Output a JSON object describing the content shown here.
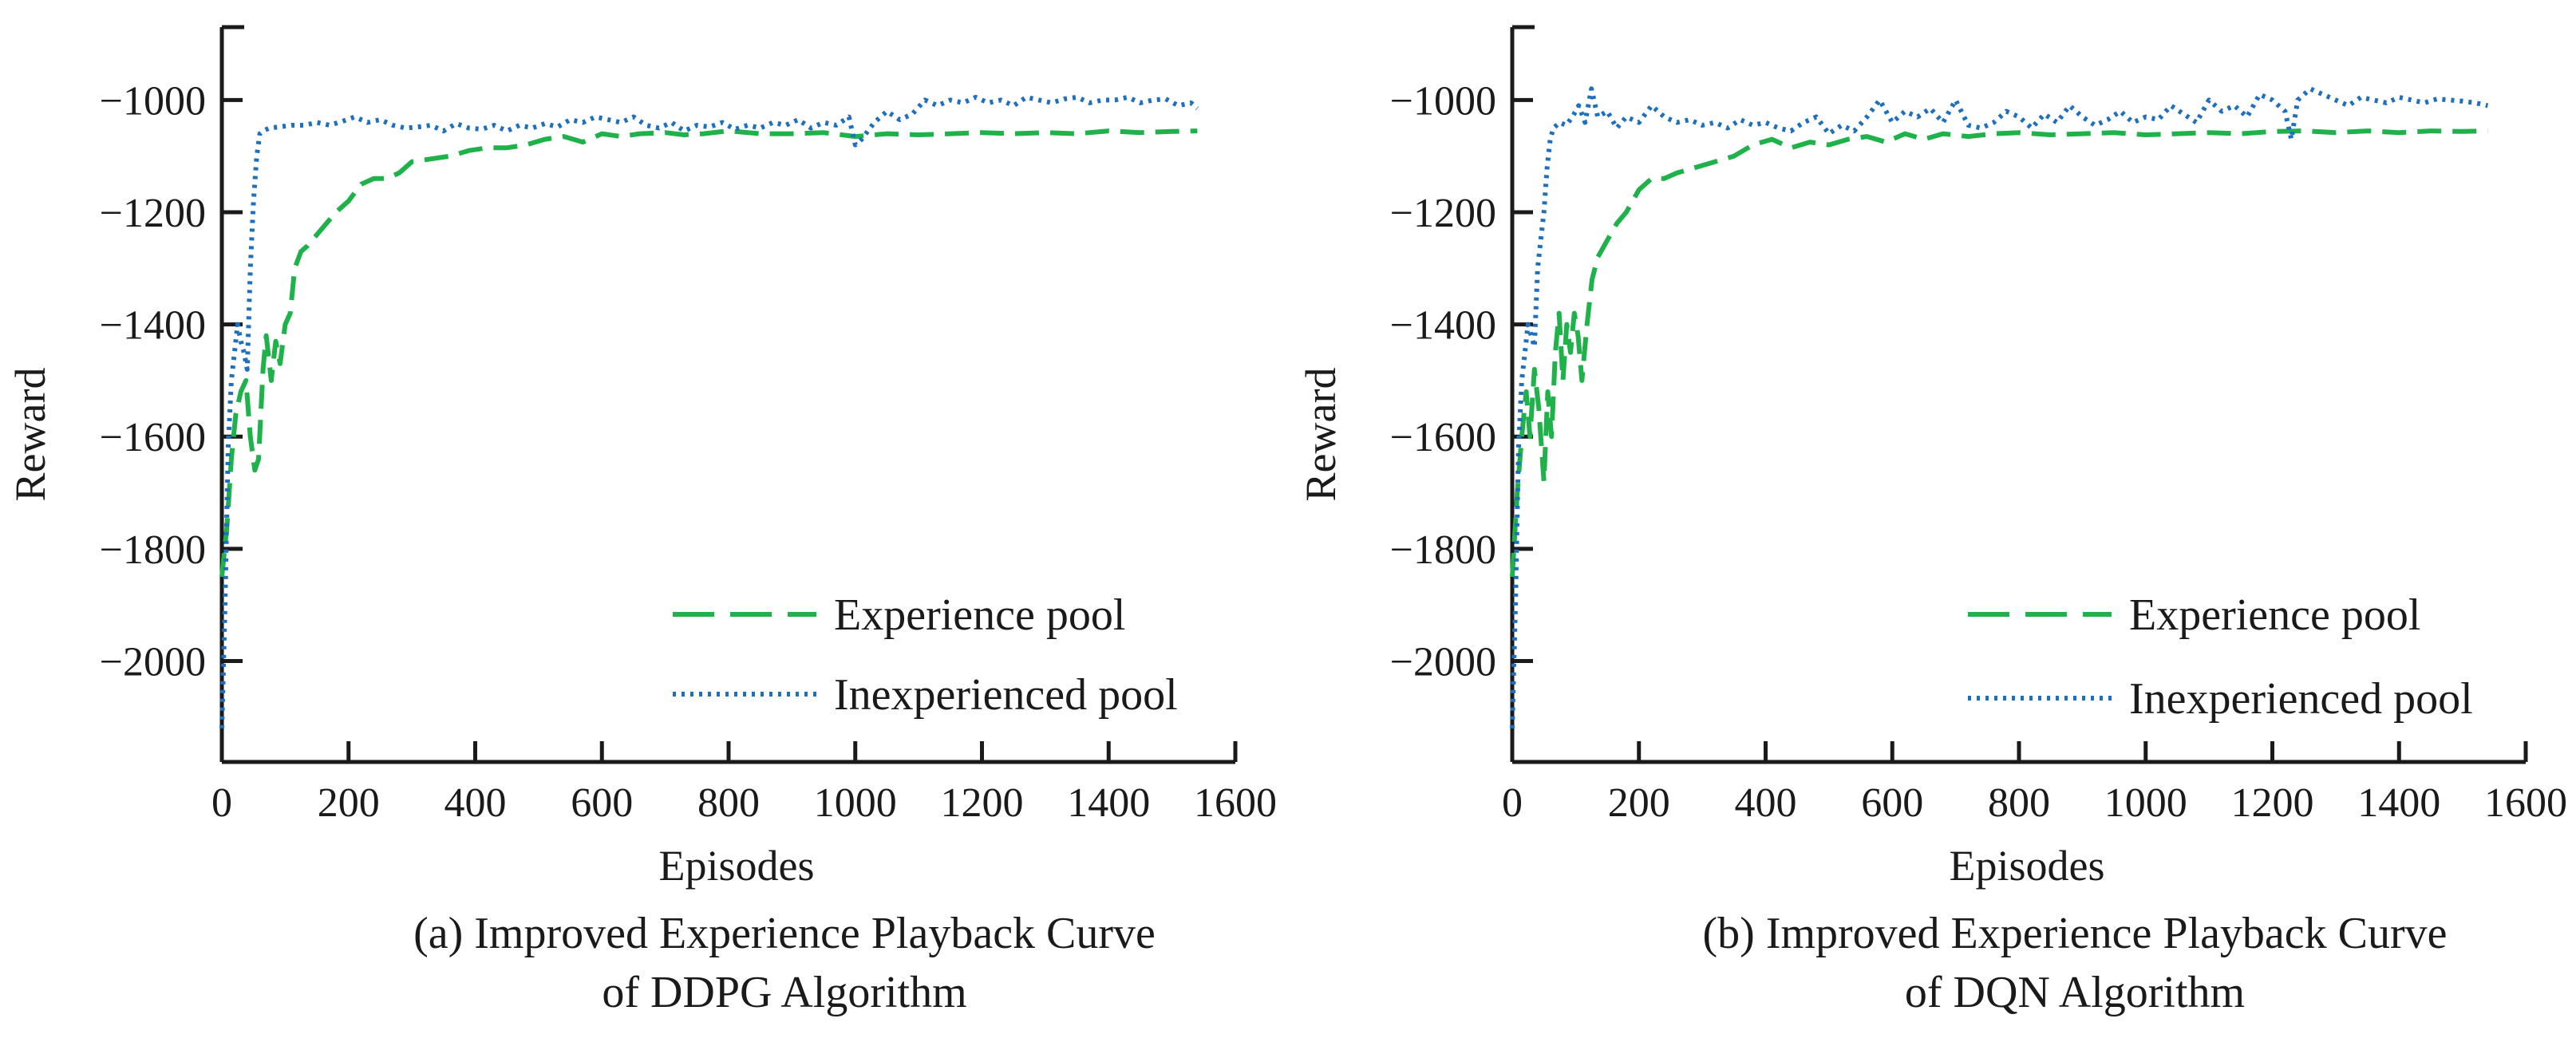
{
  "colors": {
    "experience": "#1fb24a",
    "inexperienced": "#1f6fbf",
    "axis": "#1a1a1a"
  },
  "chart_data": [
    {
      "type": "line",
      "caption_line1": "(a) Improved Experience Playback Curve",
      "caption_line2": "of DDPG Algorithm",
      "xlabel": "Episodes",
      "ylabel": "Reward",
      "xlim": [
        0,
        1600
      ],
      "ylim": [
        -2180,
        -870
      ],
      "xticks": [
        0,
        200,
        400,
        600,
        800,
        1000,
        1200,
        1400,
        1600
      ],
      "yticks": [
        -2000,
        -1800,
        -1600,
        -1400,
        -1200,
        -1000
      ],
      "xtick_labels": [
        "0",
        "200",
        "400",
        "600",
        "800",
        "1000",
        "1200",
        "1400",
        "1600"
      ],
      "ytick_labels": [
        "−2000",
        "−1800",
        "−1600",
        "−1400",
        "−1200",
        "−1000"
      ],
      "legend_position": "bottom-right",
      "series": [
        {
          "name": "Experience pool",
          "style": "dashed",
          "x": [
            0,
            8,
            15,
            22,
            30,
            38,
            45,
            52,
            58,
            65,
            70,
            78,
            85,
            92,
            100,
            108,
            115,
            125,
            135,
            150,
            165,
            180,
            200,
            220,
            240,
            260,
            280,
            300,
            330,
            360,
            390,
            420,
            450,
            480,
            510,
            540,
            570,
            600,
            630,
            660,
            700,
            730,
            760,
            800,
            850,
            900,
            950,
            1000,
            1050,
            1100,
            1150,
            1200,
            1250,
            1300,
            1350,
            1400,
            1450,
            1500,
            1540
          ],
          "values": [
            -1850,
            -1760,
            -1640,
            -1560,
            -1520,
            -1500,
            -1600,
            -1660,
            -1640,
            -1480,
            -1420,
            -1500,
            -1430,
            -1470,
            -1400,
            -1380,
            -1300,
            -1270,
            -1260,
            -1240,
            -1220,
            -1200,
            -1180,
            -1150,
            -1140,
            -1140,
            -1130,
            -1110,
            -1105,
            -1100,
            -1090,
            -1085,
            -1085,
            -1080,
            -1070,
            -1065,
            -1075,
            -1060,
            -1065,
            -1060,
            -1058,
            -1062,
            -1060,
            -1055,
            -1060,
            -1060,
            -1058,
            -1065,
            -1060,
            -1062,
            -1060,
            -1058,
            -1060,
            -1058,
            -1060,
            -1055,
            -1058,
            -1056,
            -1055
          ]
        },
        {
          "name": "Inexperienced pool",
          "style": "dotted",
          "x": [
            0,
            5,
            10,
            15,
            20,
            25,
            30,
            35,
            40,
            45,
            50,
            55,
            60,
            65,
            75,
            90,
            110,
            130,
            150,
            170,
            190,
            210,
            230,
            250,
            270,
            290,
            310,
            330,
            350,
            370,
            390,
            410,
            430,
            450,
            470,
            490,
            510,
            530,
            550,
            570,
            590,
            610,
            630,
            650,
            670,
            690,
            710,
            730,
            750,
            770,
            790,
            810,
            830,
            850,
            870,
            890,
            910,
            930,
            950,
            970,
            990,
            1000,
            1010,
            1030,
            1050,
            1070,
            1090,
            1110,
            1130,
            1150,
            1170,
            1190,
            1210,
            1230,
            1250,
            1270,
            1290,
            1310,
            1330,
            1350,
            1370,
            1390,
            1410,
            1430,
            1450,
            1470,
            1490,
            1510,
            1530,
            1540
          ],
          "values": [
            -2120,
            -1900,
            -1620,
            -1500,
            -1450,
            -1400,
            -1430,
            -1450,
            -1480,
            -1300,
            -1180,
            -1100,
            -1060,
            -1055,
            -1050,
            -1048,
            -1045,
            -1045,
            -1040,
            -1045,
            -1038,
            -1030,
            -1040,
            -1035,
            -1045,
            -1050,
            -1048,
            -1045,
            -1055,
            -1042,
            -1050,
            -1052,
            -1045,
            -1055,
            -1045,
            -1050,
            -1042,
            -1048,
            -1035,
            -1040,
            -1030,
            -1035,
            -1040,
            -1030,
            -1045,
            -1050,
            -1040,
            -1055,
            -1045,
            -1048,
            -1040,
            -1052,
            -1045,
            -1050,
            -1040,
            -1045,
            -1035,
            -1050,
            -1040,
            -1045,
            -1030,
            -1080,
            -1070,
            -1040,
            -1020,
            -1035,
            -1025,
            -1000,
            -1010,
            -1000,
            -1005,
            -995,
            -1005,
            -1000,
            -1010,
            -995,
            -1000,
            -1005,
            -998,
            -995,
            -1005,
            -1000,
            -1000,
            -995,
            -1005,
            -1000,
            -998,
            -1010,
            -1005,
            -1015
          ]
        }
      ]
    },
    {
      "type": "line",
      "caption_line1": "(b) Improved Experience Playback Curve",
      "caption_line2": "of DQN Algorithm",
      "xlabel": "Episodes",
      "ylabel": "Reward",
      "xlim": [
        0,
        1600
      ],
      "ylim": [
        -2180,
        -870
      ],
      "xticks": [
        0,
        200,
        400,
        600,
        800,
        1000,
        1200,
        1400,
        1600
      ],
      "yticks": [
        -2000,
        -1800,
        -1600,
        -1400,
        -1200,
        -1000
      ],
      "xtick_labels": [
        "0",
        "200",
        "400",
        "600",
        "800",
        "1000",
        "1200",
        "1400",
        "1600"
      ],
      "ytick_labels": [
        "−2000",
        "−1800",
        "−1600",
        "−1400",
        "−1200",
        "−1000"
      ],
      "legend_position": "bottom-right",
      "series": [
        {
          "name": "Experience pool",
          "style": "dashed",
          "x": [
            0,
            8,
            15,
            22,
            28,
            35,
            42,
            50,
            56,
            62,
            68,
            74,
            80,
            86,
            92,
            98,
            104,
            110,
            118,
            126,
            135,
            150,
            165,
            180,
            200,
            220,
            240,
            260,
            290,
            320,
            350,
            380,
            410,
            440,
            470,
            500,
            530,
            560,
            590,
            620,
            650,
            680,
            720,
            760,
            800,
            850,
            900,
            950,
            1000,
            1050,
            1100,
            1150,
            1200,
            1250,
            1300,
            1350,
            1400,
            1450,
            1500,
            1540
          ],
          "values": [
            -1850,
            -1700,
            -1600,
            -1520,
            -1600,
            -1480,
            -1550,
            -1680,
            -1520,
            -1600,
            -1450,
            -1380,
            -1500,
            -1400,
            -1450,
            -1380,
            -1420,
            -1500,
            -1400,
            -1320,
            -1280,
            -1250,
            -1220,
            -1200,
            -1160,
            -1140,
            -1140,
            -1130,
            -1120,
            -1110,
            -1100,
            -1080,
            -1070,
            -1085,
            -1075,
            -1080,
            -1070,
            -1065,
            -1075,
            -1060,
            -1070,
            -1060,
            -1065,
            -1060,
            -1058,
            -1062,
            -1060,
            -1058,
            -1062,
            -1060,
            -1058,
            -1060,
            -1056,
            -1055,
            -1058,
            -1055,
            -1058,
            -1055,
            -1056,
            -1055
          ]
        },
        {
          "name": "Inexperienced pool",
          "style": "dotted",
          "x": [
            0,
            5,
            10,
            15,
            20,
            25,
            30,
            35,
            40,
            45,
            50,
            55,
            60,
            65,
            75,
            85,
            95,
            105,
            115,
            125,
            135,
            150,
            165,
            180,
            200,
            220,
            240,
            260,
            280,
            300,
            320,
            340,
            360,
            380,
            400,
            420,
            440,
            460,
            480,
            500,
            520,
            540,
            560,
            580,
            600,
            620,
            640,
            660,
            680,
            700,
            720,
            740,
            760,
            780,
            800,
            820,
            840,
            860,
            880,
            900,
            920,
            940,
            960,
            980,
            1000,
            1020,
            1040,
            1060,
            1080,
            1100,
            1120,
            1140,
            1160,
            1180,
            1200,
            1220,
            1230,
            1240,
            1260,
            1280,
            1300,
            1320,
            1340,
            1360,
            1380,
            1400,
            1420,
            1440,
            1460,
            1480,
            1500,
            1520,
            1540
          ],
          "values": [
            -2120,
            -1900,
            -1620,
            -1500,
            -1450,
            -1400,
            -1420,
            -1440,
            -1300,
            -1250,
            -1200,
            -1120,
            -1070,
            -1050,
            -1040,
            -1045,
            -1030,
            -1010,
            -1040,
            -980,
            -1030,
            -1020,
            -1050,
            -1030,
            -1040,
            -1010,
            -1030,
            -1040,
            -1035,
            -1045,
            -1040,
            -1050,
            -1035,
            -1045,
            -1040,
            -1050,
            -1055,
            -1040,
            -1030,
            -1060,
            -1045,
            -1055,
            -1030,
            -1000,
            -1040,
            -1020,
            -1030,
            -1015,
            -1040,
            -1000,
            -1045,
            -1050,
            -1040,
            -1020,
            -1030,
            -1050,
            -1025,
            -1040,
            -1010,
            -1030,
            -1045,
            -1035,
            -1020,
            -1040,
            -1030,
            -1035,
            -1010,
            -1025,
            -1040,
            -1000,
            -1020,
            -1010,
            -1030,
            -990,
            -1000,
            -1020,
            -1070,
            -1000,
            -980,
            -990,
            -1000,
            -1010,
            -995,
            -1000,
            -1005,
            -995,
            -1000,
            -1005,
            -998,
            -1000,
            -1002,
            -1005,
            -1010
          ]
        }
      ]
    }
  ]
}
